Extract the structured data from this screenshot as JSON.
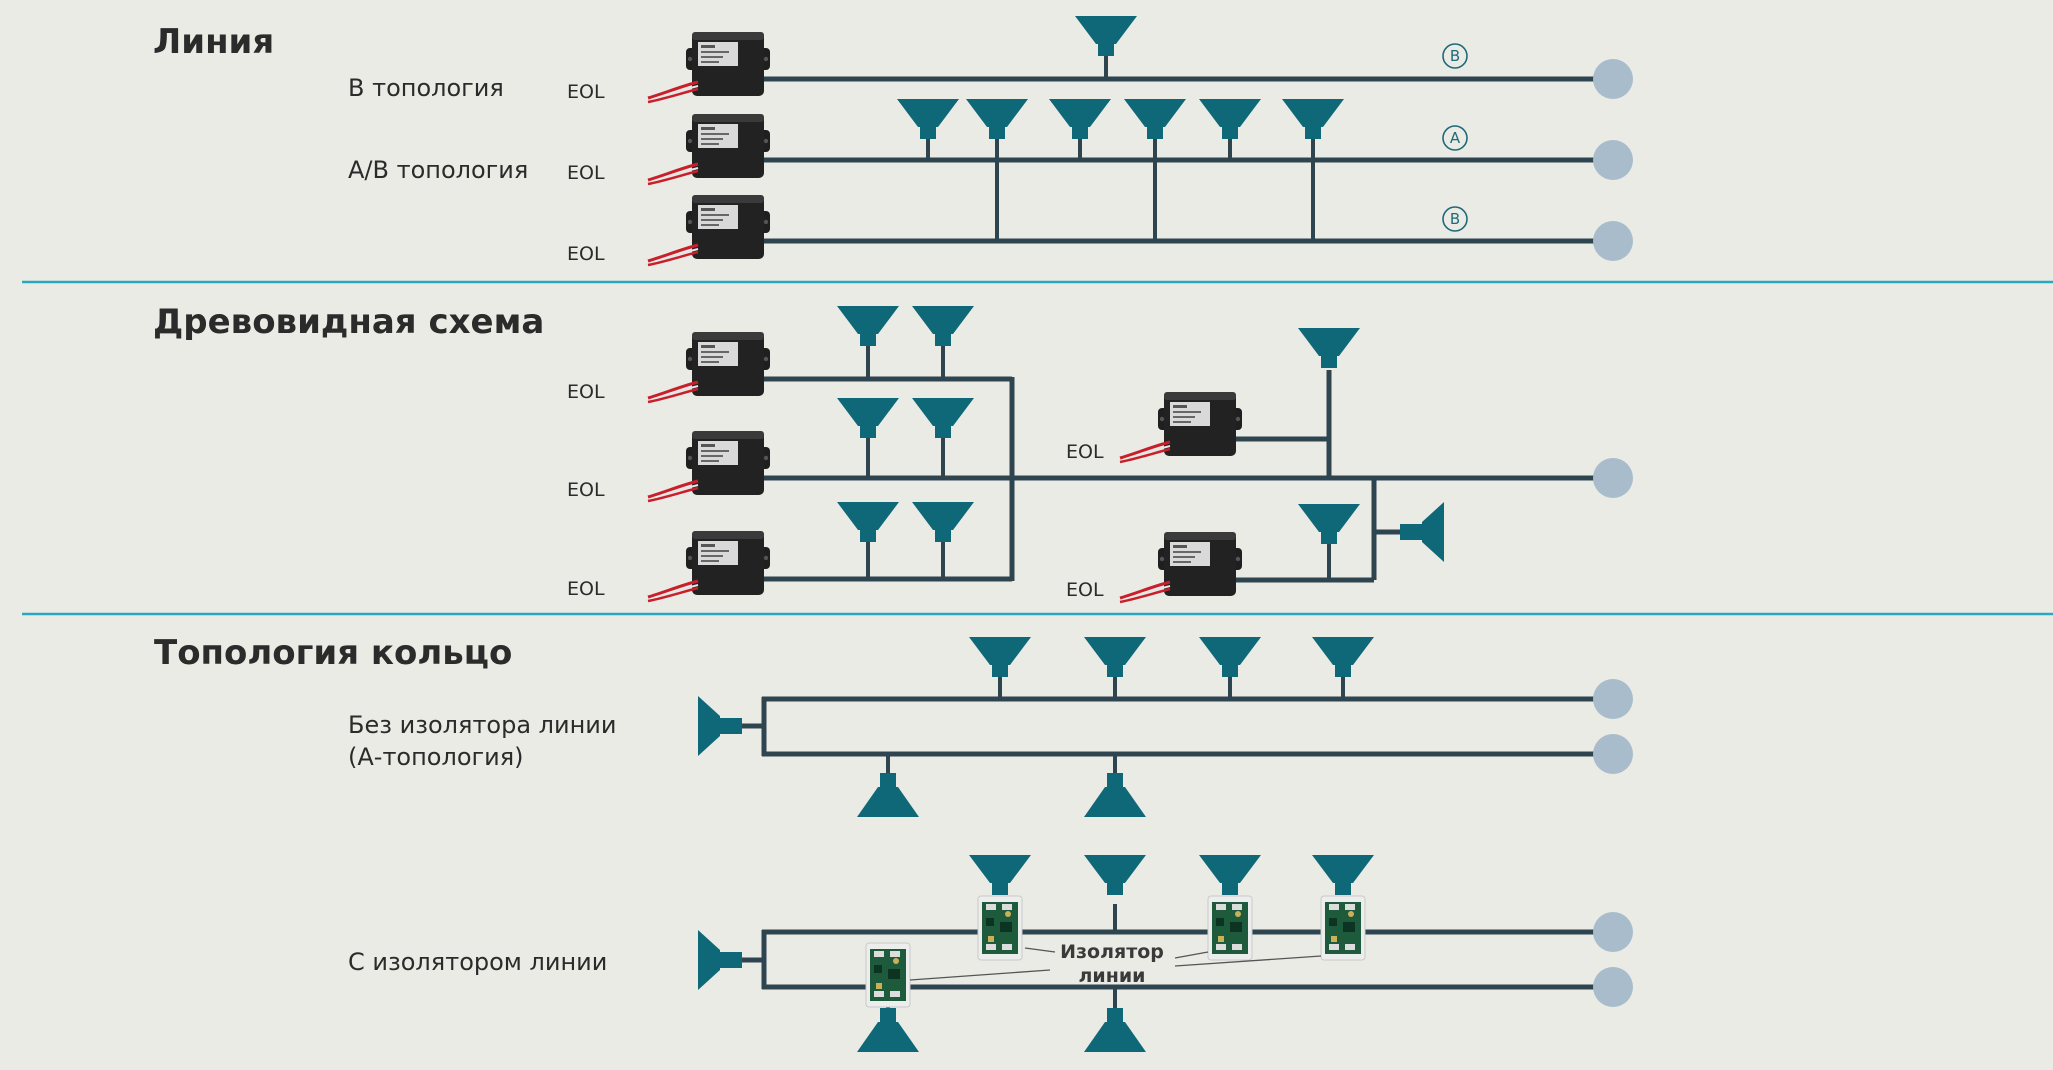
{
  "sections": {
    "line": {
      "title": "Линия",
      "b_topology": "В топология",
      "ab_topology": "А/В топология",
      "eol": [
        "EOL",
        "EOL",
        "EOL"
      ],
      "markers": [
        "B",
        "A",
        "B"
      ]
    },
    "tree": {
      "title": "Древовидная схема",
      "eol": [
        "EOL",
        "EOL",
        "EOL",
        "EOL",
        "EOL"
      ]
    },
    "ring": {
      "title": "Топология кольцо",
      "no_isolator_line1": "Без изолятора линии",
      "no_isolator_line2": "(А-топология)",
      "with_isolator": "С изолятором линии",
      "isolator_label_line1": "Изолятор",
      "isolator_label_line2": "линии"
    }
  },
  "colors": {
    "background": "#ebebe6",
    "bus": "#2e4550",
    "speaker": "#0f6878",
    "separator": "#2aa6c0",
    "terminal": "#a9bccb"
  },
  "icons": [
    "eol-module-icon",
    "ceiling-speaker-icon",
    "horn-speaker-icon",
    "isolator-module-icon",
    "amplifier-terminal-icon"
  ]
}
